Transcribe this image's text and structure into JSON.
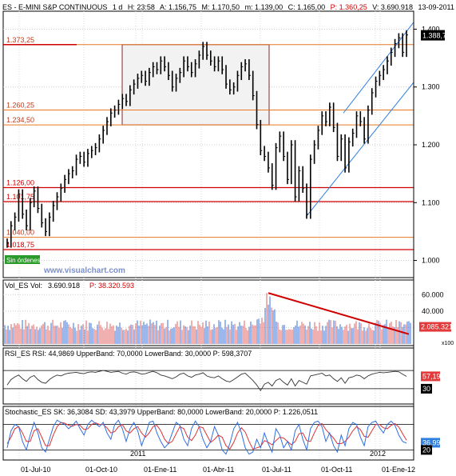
{
  "header": {
    "symbol": "ES - E-MINI S&P CONTINUOUS",
    "timeframe": "1 d",
    "time": "H: 23:58",
    "open": "A: 1.156,75",
    "high": "M: 1.170,50",
    "low": "m: 1.139,00",
    "close": "C: 1.165,00",
    "price": "P: 1.360,25",
    "volume": "V: 3.690.918",
    "date": "13-09-2011"
  },
  "watermark": "www.visualchart.com",
  "sin_ordenes": "Sin órdenes",
  "last_price_label": "1.388,75",
  "colors": {
    "orange_line": "#e87722",
    "red_line": "#d00000",
    "blue_line": "#2f7fe0",
    "price_bars": "#000000",
    "rsi_label_bg": "#e23a3a",
    "stoch_label_bg": "#2f7fe0"
  },
  "chart_data": [
    {
      "type": "line",
      "title": "ES - E-MINI S&P CONTINUOUS",
      "ylim": [
        980,
        1420
      ],
      "y_ticks": [
        "1.000",
        "1.100",
        "1.200",
        "1.300",
        "1.400"
      ],
      "x_ticks": [
        "01-Jul-10",
        "01-Oct-10",
        "2011",
        "01-Ene-11",
        "01-Abr-11",
        "01-Jul-11",
        "01-Oct-11",
        "2012",
        "01-Ene-12"
      ],
      "series": [
        {
          "values": [
            1030,
            1060,
            1075,
            1115,
            1080,
            1060,
            1100,
            1120,
            1090,
            1065,
            1050,
            1075,
            1095,
            1110,
            1125,
            1140,
            1150,
            1155,
            1175,
            1180,
            1170,
            1185,
            1190,
            1195,
            1210,
            1225,
            1240,
            1255,
            1260,
            1270,
            1280,
            1275,
            1295,
            1305,
            1315,
            1320,
            1310,
            1325,
            1335,
            1330,
            1345,
            1335,
            1320,
            1300,
            1315,
            1325,
            1345,
            1335,
            1325,
            1340,
            1355,
            1370,
            1355,
            1345,
            1335,
            1345,
            1330,
            1305,
            1295,
            1300,
            1320,
            1335,
            1340,
            1320,
            1285,
            1235,
            1190,
            1180,
            1160,
            1130,
            1195,
            1215,
            1180,
            1140,
            1200,
            1110,
            1155,
            1125,
            1080,
            1175,
            1200,
            1225,
            1250,
            1240,
            1265,
            1230,
            1180,
            1210,
            1160,
            1205,
            1220,
            1250,
            1240,
            1210,
            1260,
            1290,
            1310,
            1320,
            1330,
            1345,
            1360,
            1375,
            1385,
            1360,
            1390
          ]
        }
      ]
    },
    {
      "type": "bar",
      "title": "Vol_ES Vol",
      "ylim": [
        0,
        70000
      ],
      "y_ticks": [
        "20.000",
        "40.000",
        "60.000"
      ],
      "values_summary": "Vol: 3.690.918",
      "current_value_label": "2.085.321",
      "scale_label": "x100",
      "series_info": "P: 38.320.593"
    },
    {
      "type": "line",
      "title": "RSI_ES RSI: 44,9869 UpperBand: 70,0000 LowerBand: 30,0000 P: 598,3707",
      "ylim": [
        0,
        100
      ],
      "y_ticks": [
        "30"
      ],
      "upper_band": 70,
      "lower_band": 30,
      "current_value_label": "57,19",
      "series": [
        {
          "values": [
            38,
            50,
            56,
            60,
            52,
            46,
            55,
            59,
            50,
            44,
            42,
            50,
            56,
            60,
            58,
            62,
            64,
            65,
            66,
            64,
            63,
            66,
            67,
            66,
            68,
            70,
            68,
            66,
            67,
            68,
            64,
            62,
            66,
            67,
            65,
            62,
            63,
            66,
            68,
            65,
            60,
            58,
            55,
            52,
            56,
            62,
            64,
            58,
            55,
            60,
            62,
            65,
            58,
            55,
            54,
            58,
            52,
            47,
            45,
            50,
            56,
            62,
            64,
            56,
            48,
            38,
            26,
            40,
            44,
            36,
            48,
            52,
            44,
            38,
            52,
            36,
            48,
            44,
            40,
            58,
            60,
            62,
            64,
            58,
            60,
            52,
            46,
            54,
            42,
            54,
            56,
            60,
            58,
            52,
            58,
            62,
            64,
            66,
            65,
            66,
            67,
            68,
            67,
            62,
            57
          ]
        }
      ]
    },
    {
      "type": "line",
      "title": "Stochastic_ES SK: 36,3084 SD: 43,3979 UpperBand: 80,0000 LowerBand: 20,0000 P: 1.226,0511",
      "ylim": [
        0,
        100
      ],
      "y_ticks": [
        "20"
      ],
      "upper_band": 80,
      "lower_band": 20,
      "current_value_label": "36,99",
      "series": [
        {
          "name": "SK",
          "values": [
            25,
            65,
            80,
            75,
            40,
            20,
            55,
            85,
            60,
            25,
            15,
            45,
            75,
            90,
            85,
            80,
            70,
            78,
            88,
            70,
            55,
            80,
            90,
            82,
            75,
            85,
            60,
            45,
            80,
            90,
            70,
            40,
            70,
            85,
            65,
            30,
            55,
            85,
            88,
            60,
            40,
            25,
            35,
            60,
            85,
            78,
            45,
            30,
            70,
            88,
            75,
            45,
            25,
            40,
            75,
            55,
            20,
            10,
            35,
            70,
            85,
            60,
            25,
            10,
            15,
            45,
            25,
            60,
            35,
            15,
            70,
            55,
            25,
            40,
            20,
            65,
            80,
            45,
            20,
            70,
            85,
            88,
            75,
            40,
            60,
            30,
            15,
            55,
            30,
            70,
            85,
            80,
            50,
            30,
            75,
            85,
            88,
            72,
            60,
            80,
            88,
            78,
            55,
            40,
            36
          ]
        },
        {
          "name": "SD",
          "values": [
            35,
            50,
            70,
            75,
            60,
            40,
            40,
            65,
            70,
            50,
            30,
            30,
            55,
            75,
            85,
            83,
            78,
            76,
            80,
            78,
            68,
            70,
            80,
            84,
            80,
            80,
            72,
            60,
            63,
            75,
            80,
            65,
            60,
            70,
            75,
            60,
            50,
            60,
            75,
            78,
            65,
            45,
            35,
            40,
            58,
            75,
            70,
            50,
            42,
            55,
            75,
            72,
            55,
            38,
            45,
            55,
            50,
            30,
            22,
            38,
            60,
            72,
            62,
            40,
            22,
            25,
            28,
            42,
            38,
            32,
            42,
            50,
            48,
            40,
            32,
            40,
            58,
            60,
            42,
            40,
            60,
            78,
            82,
            68,
            58,
            48,
            35,
            35,
            40,
            50,
            65,
            75,
            68,
            52,
            50,
            65,
            80,
            80,
            72,
            70,
            78,
            82,
            74,
            58,
            43
          ]
        }
      ]
    }
  ],
  "annotations": {
    "horizontal_levels": [
      {
        "label": "1.373,25",
        "value": 1373.25,
        "color": "orange"
      },
      {
        "label": "1.260,25",
        "value": 1260.25,
        "color": "orange"
      },
      {
        "label": "1.234,50",
        "value": 1234.5,
        "color": "orange"
      },
      {
        "label": "1.126,00",
        "value": 1126.0,
        "color": "red"
      },
      {
        "label": "1.101,75",
        "value": 1101.75,
        "color": "red"
      },
      {
        "label": "1.040,00",
        "value": 1040.0,
        "color": "orange"
      },
      {
        "label": "1.018,75",
        "value": 1018.75,
        "color": "red"
      }
    ]
  }
}
